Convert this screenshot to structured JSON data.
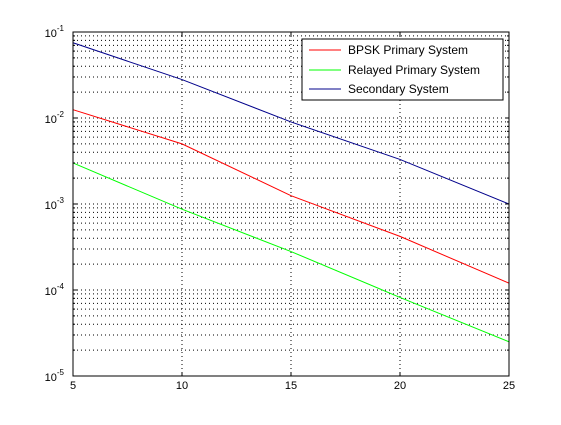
{
  "chart_data": {
    "type": "line",
    "title": "",
    "xlabel": "",
    "ylabel": "",
    "x_scale": "linear",
    "y_scale": "log",
    "xlim": [
      5,
      25
    ],
    "ylim": [
      1e-05,
      0.1
    ],
    "grid": true,
    "grid_style": "dotted",
    "legend_position": "top-right",
    "x_ticks": [
      "5",
      "10",
      "15",
      "20",
      "25"
    ],
    "y_ticks": [
      {
        "base": "10",
        "exp": "-5",
        "value": 1e-05
      },
      {
        "base": "10",
        "exp": "-4",
        "value": 0.0001
      },
      {
        "base": "10",
        "exp": "-3",
        "value": 0.001
      },
      {
        "base": "10",
        "exp": "-2",
        "value": 0.01
      },
      {
        "base": "10",
        "exp": "-1",
        "value": 0.1
      }
    ],
    "x": [
      5,
      10,
      15,
      20,
      25
    ],
    "series": [
      {
        "name": "BPSK Primary System",
        "color": "#ff0000",
        "values": [
          0.0125,
          0.005,
          0.00125,
          0.00042,
          0.00012
        ]
      },
      {
        "name": "Relayed Primary System",
        "color": "#00ff00",
        "values": [
          0.003,
          0.00087,
          0.00028,
          8.2e-05,
          2.5e-05
        ]
      },
      {
        "name": "Secondary System",
        "color": "#00008b",
        "values": [
          0.075,
          0.028,
          0.009,
          0.0033,
          0.001
        ]
      }
    ]
  }
}
